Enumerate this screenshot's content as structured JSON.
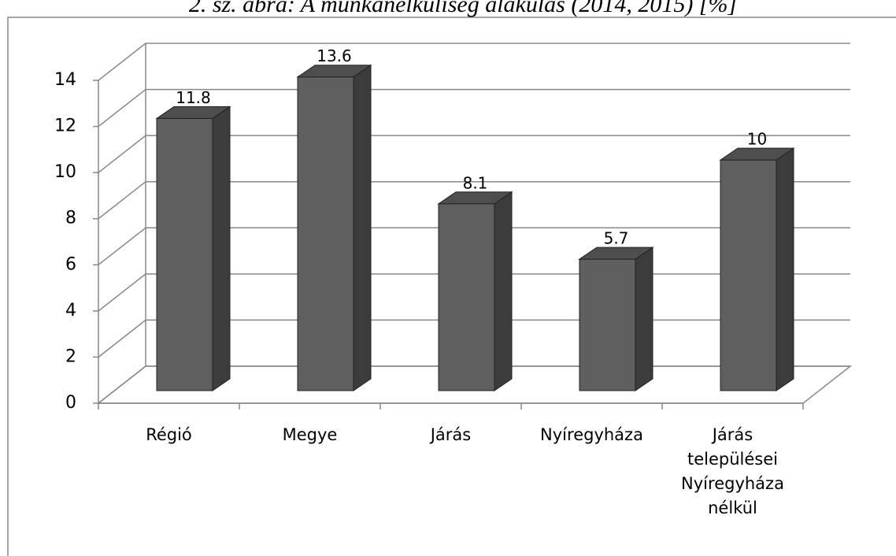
{
  "chart_data": {
    "type": "bar3d",
    "title": "2. sz. ábra: A munkanélküliség alakulás (2014, 2015) [%]",
    "categories": [
      "Régió",
      "Megye",
      "Járás",
      "Nyíregyháza",
      "Járás települései Nyíregyháza nélkül"
    ],
    "values": [
      11.8,
      13.6,
      8.1,
      5.7,
      10
    ],
    "color": "#5f5f5f",
    "ylim": [
      0,
      14
    ],
    "yticks": [
      0,
      2,
      4,
      6,
      8,
      10,
      12,
      14
    ],
    "grid": true
  }
}
